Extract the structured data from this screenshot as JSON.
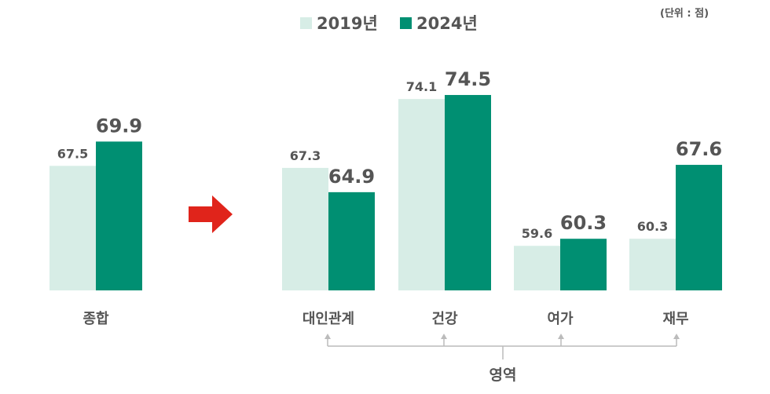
{
  "chart_data": {
    "type": "bar",
    "title": "",
    "unit_label": "(단위 : 점)",
    "xlabel": "영역",
    "ylabel": "",
    "ylim": [
      55.2,
      80
    ],
    "grid": false,
    "legend_placement": "top-center",
    "colors": {
      "2019년": "#d7ede6",
      "2024년": "#008f72",
      "arrow": "#e0241b",
      "text": "#555555",
      "bracket": "#bbbbbb"
    },
    "categories": [
      "종합",
      "대인관계",
      "건강",
      "여가",
      "재무"
    ],
    "series": [
      {
        "name": "2019년",
        "values": [
          67.5,
          67.3,
          74.1,
          59.6,
          60.3
        ]
      },
      {
        "name": "2024년",
        "values": [
          69.9,
          64.9,
          74.5,
          60.3,
          67.6
        ]
      }
    ]
  }
}
